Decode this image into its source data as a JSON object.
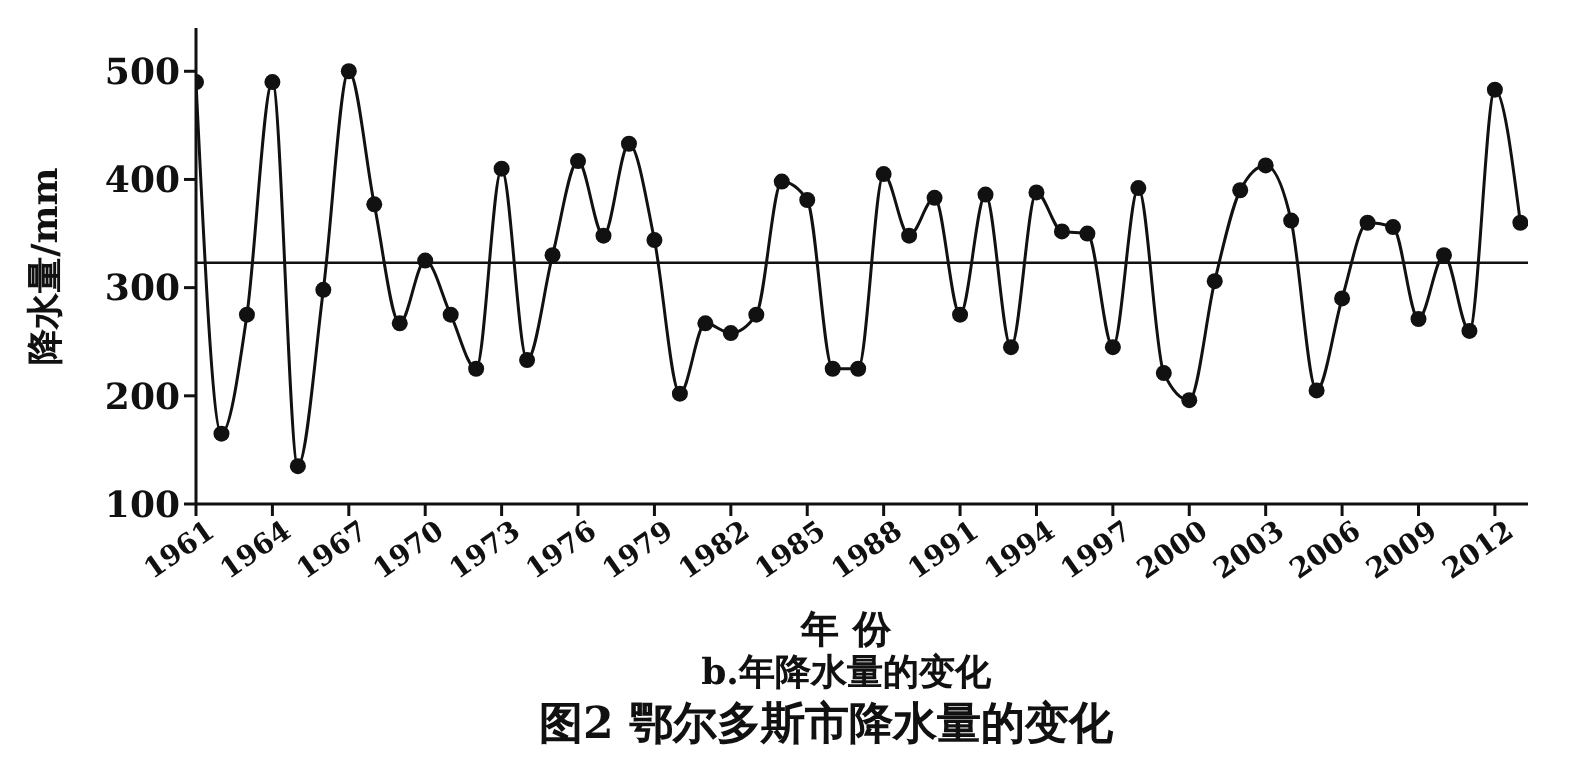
{
  "chart_data": {
    "type": "line",
    "title": "图2 鄂尔多斯市降水量的变化",
    "subtitle": "b.年降水量的变化",
    "xlabel": "年 份",
    "ylabel": "降水量/mm",
    "x": [
      1961,
      1962,
      1963,
      1964,
      1965,
      1966,
      1967,
      1968,
      1969,
      1970,
      1971,
      1972,
      1973,
      1974,
      1975,
      1976,
      1977,
      1978,
      1979,
      1980,
      1981,
      1982,
      1983,
      1984,
      1985,
      1986,
      1987,
      1988,
      1989,
      1990,
      1991,
      1992,
      1993,
      1994,
      1995,
      1996,
      1997,
      1998,
      1999,
      2000,
      2001,
      2002,
      2003,
      2004,
      2005,
      2006,
      2007,
      2008,
      2009,
      2010,
      2011,
      2012,
      2013
    ],
    "series": [
      {
        "color": "#111111",
        "values": [
          490,
          165,
          275,
          490,
          135,
          298,
          500,
          377,
          267,
          325,
          275,
          225,
          410,
          233,
          330,
          417,
          348,
          433,
          344,
          202,
          267,
          258,
          275,
          398,
          381,
          225,
          225,
          405,
          348,
          383,
          275,
          386,
          245,
          388,
          352,
          350,
          245,
          392,
          221,
          196,
          306,
          390,
          413,
          362,
          205,
          290,
          360,
          356,
          271,
          330,
          260,
          483,
          360
        ]
      }
    ],
    "xlim": [
      1961,
      2013.3
    ],
    "xticks": [
      1961,
      1964,
      1967,
      1970,
      1973,
      1976,
      1979,
      1982,
      1985,
      1988,
      1991,
      1994,
      1997,
      2000,
      2003,
      2006,
      2009,
      2012
    ],
    "ylim": [
      100,
      540
    ],
    "yticks": [
      100,
      200,
      300,
      400,
      500
    ],
    "ref_lines": [
      {
        "axis": "y",
        "value": 323,
        "color": "#111111"
      }
    ],
    "marker": "circle",
    "line_style": "solid",
    "grid": false
  }
}
